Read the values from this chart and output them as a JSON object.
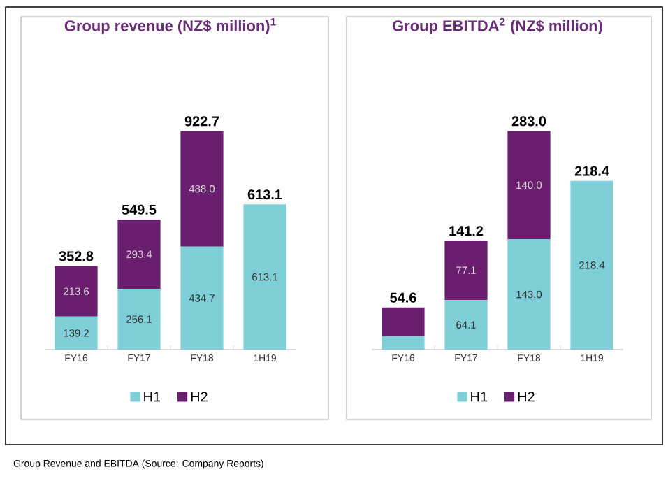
{
  "chart_data": [
    {
      "type": "bar",
      "title": "Group revenue (NZ$ million)$^{1}$",
      "categories": [
        "FY16",
        "FY17",
        "FY18",
        "1H19"
      ],
      "stacked": true,
      "legend": "bottom",
      "series": [
        {
          "name": "H1",
          "color": "#7ecfd8",
          "values": [
            139.2,
            256.1,
            434.7,
            613.1
          ],
          "value_labels": [
            "139.2",
            "256.1",
            "434.7",
            "613.1"
          ]
        },
        {
          "name": "H2",
          "color": "#6a1f6e",
          "values": [
            213.6,
            293.4,
            488.0,
            null
          ],
          "value_labels": [
            "213.6",
            "293.4",
            "488.0",
            null
          ]
        }
      ],
      "totals": [
        "352.8",
        "549.5",
        "922.7",
        "613.1"
      ],
      "annotations": [
        "Group Revenue and EBITDA (Source: Company Reports)"
      ]
    },
    {
      "type": "bar",
      "title": "Group EBITDA$^{2}$ (NZ$ million)",
      "categories": [
        "FY16",
        "FY17",
        "FY18",
        "1H19"
      ],
      "stacked": true,
      "legend": "bottom",
      "series": [
        {
          "name": "H1",
          "color": "#7ecfd8",
          "values": [
            17.4,
            64.1,
            143.0,
            218.4
          ],
          "value_labels": [
            null,
            "64.1",
            "143.0",
            "218.4"
          ]
        },
        {
          "name": "H2",
          "color": "#6a1f6e",
          "values": [
            37.2,
            77.1,
            140.0,
            null
          ],
          "value_labels": [
            null,
            "77.1",
            "140.0",
            null
          ]
        }
      ],
      "totals": [
        "54.6",
        "141.2",
        "283.0",
        "218.4"
      ]
    }
  ]
}
